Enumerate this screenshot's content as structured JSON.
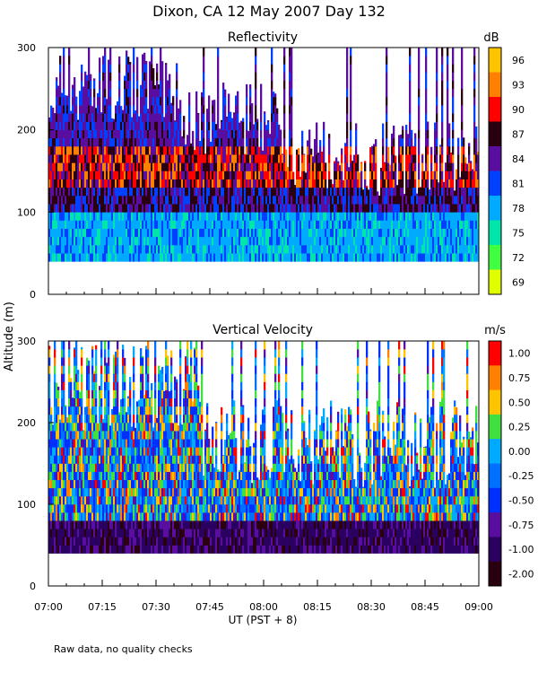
{
  "figure": {
    "title": "Dixon, CA 12 May 2007  Day 132",
    "ylabel": "Altitude (m)",
    "xlabel": "UT  (PST + 8)",
    "footnote": "Raw data, no quality checks"
  },
  "chart_data": [
    {
      "type": "heatmap",
      "title": "Reflectivity",
      "units": "dB",
      "xlim": [
        "07:00",
        "09:00"
      ],
      "x_ticks": [
        "07:00",
        "07:15",
        "07:30",
        "07:45",
        "08:00",
        "08:15",
        "08:30",
        "08:45",
        "09:00"
      ],
      "ylim": [
        0,
        300
      ],
      "y_ticks": [
        0,
        100,
        200,
        300
      ],
      "colorbar": {
        "labels": [
          "96",
          "93",
          "90",
          "87",
          "84",
          "81",
          "78",
          "75",
          "72",
          "69"
        ],
        "colors": [
          "#ffc400",
          "#ff8000",
          "#ff0000",
          "#2a0010",
          "#5a0ea0",
          "#0040ff",
          "#00aaff",
          "#00e6aa",
          "#40ff40",
          "#e0ff00"
        ]
      },
      "data_range_m": [
        40,
        300
      ],
      "description_of_field": "layered echo: cyan/blue below 100 m, red-black band 100-180 m, purple/blue plumes up to 300 m"
    },
    {
      "type": "heatmap",
      "title": "Vertical Velocity",
      "units": "m/s",
      "xlim": [
        "07:00",
        "09:00"
      ],
      "x_ticks": [
        "07:00",
        "07:15",
        "07:30",
        "07:45",
        "08:00",
        "08:15",
        "08:30",
        "08:45",
        "09:00"
      ],
      "ylim": [
        0,
        300
      ],
      "y_ticks": [
        0,
        100,
        200,
        300
      ],
      "colorbar": {
        "labels": [
          "1.00",
          "0.75",
          "0.50",
          "0.25",
          "0.00",
          "-0.25",
          "-0.50",
          "-0.75",
          "-1.00",
          "-2.00"
        ],
        "colors": [
          "#ff0000",
          "#ff8000",
          "#ffc400",
          "#40e040",
          "#00aaff",
          "#0070ff",
          "#0030ff",
          "#5a0ea0",
          "#2a0060",
          "#2a0010"
        ]
      },
      "data_range_m": [
        40,
        300
      ],
      "description_of_field": "mixed updrafts (yellow/green) and downdrafts (blue), dark purple near surface"
    }
  ]
}
